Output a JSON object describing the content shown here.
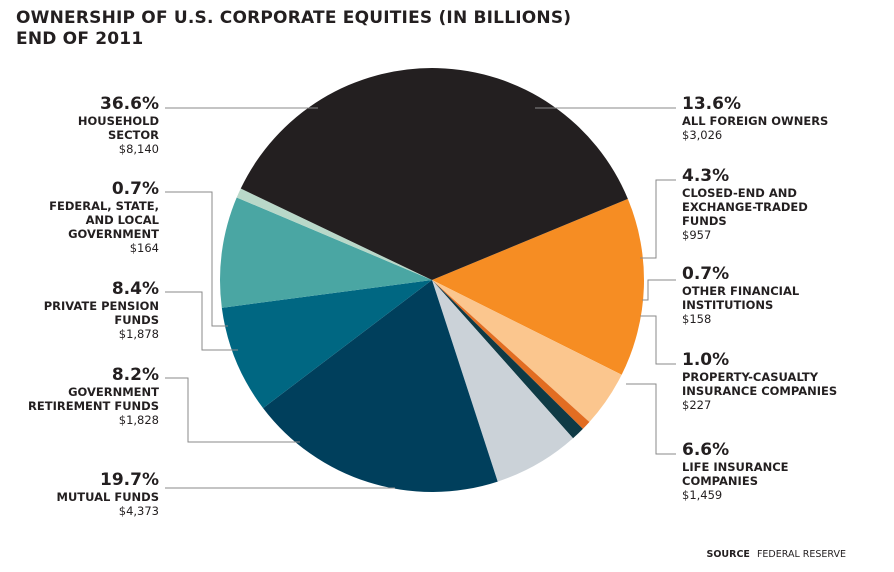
{
  "chart_data": {
    "type": "pie",
    "title_lines": [
      "OWNERSHIP OF U.S. CORPORATE EQUITIES (IN BILLIONS)",
      "END OF 2011"
    ],
    "start_category": "All foreign owners",
    "direction": "clockwise",
    "slices": [
      {
        "percent_label": "13.6%",
        "name": "ALL FOREIGN OWNERS",
        "amount": "$3,026",
        "value": 3026,
        "color": "#f68d23"
      },
      {
        "percent_label": "4.3%",
        "name": "CLOSED-END AND\nEXCHANGE-TRADED\nFUNDS",
        "amount": "$957",
        "value": 957,
        "color": "#fbc68e"
      },
      {
        "percent_label": "0.7%",
        "name": "OTHER FINANCIAL\nINSTITUTIONS",
        "amount": "$158",
        "value": 158,
        "color": "#e26d22"
      },
      {
        "percent_label": "1.0%",
        "name": "PROPERTY-CASUALTY\nINSURANCE COMPANIES",
        "amount": "$227",
        "value": 227,
        "color": "#0f3a45"
      },
      {
        "percent_label": "6.6%",
        "name": "LIFE INSURANCE\nCOMPANIES",
        "amount": "$1,459",
        "value": 1459,
        "color": "#cbd2d8"
      },
      {
        "percent_label": "19.7%",
        "name": "MUTUAL FUNDS",
        "amount": "$4,373",
        "value": 4373,
        "color": "#003f5c"
      },
      {
        "percent_label": "8.2%",
        "name": "GOVERNMENT\nRETIREMENT FUNDS",
        "amount": "$1,828",
        "value": 1828,
        "color": "#006782"
      },
      {
        "percent_label": "8.4%",
        "name": "PRIVATE PENSION\nFUNDS",
        "amount": "$1,878",
        "value": 1878,
        "color": "#4aa6a3"
      },
      {
        "percent_label": "0.7%",
        "name": "FEDERAL, STATE,\nAND LOCAL\nGOVERNMENT",
        "amount": "$164",
        "value": 164,
        "color": "#b9d8c9"
      },
      {
        "percent_label": "36.6%",
        "name": "HOUSEHOLD\nSECTOR",
        "amount": "$8,140",
        "value": 8140,
        "color": "#231f20"
      }
    ],
    "source_label": "SOURCE",
    "source": "FEDERAL RESERVE"
  }
}
